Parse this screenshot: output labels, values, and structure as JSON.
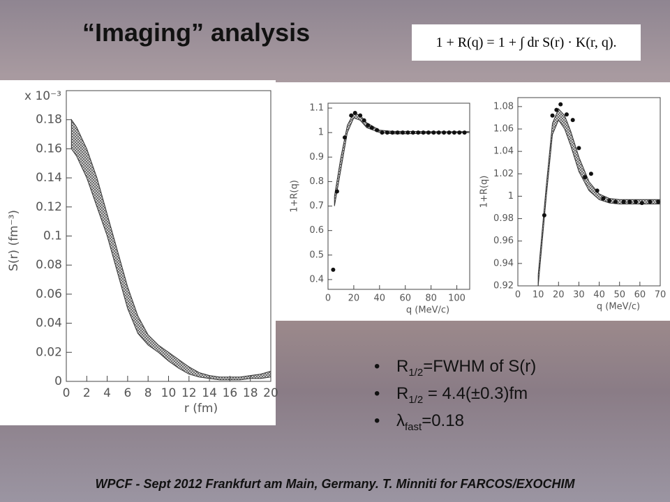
{
  "title": "“Imaging” analysis",
  "formula": "1 + R(q) = 1 + ∫ dr S(r) · K(r, q).",
  "bullets": [
    {
      "main": "R",
      "sub": "1/2",
      "rest": "=FWHM of S(r)"
    },
    {
      "main": "R",
      "sub": "1/2",
      "rest": " = 4.4(±0.3)fm"
    },
    {
      "main": "λ",
      "sub": "fast",
      "rest": "=0.18"
    }
  ],
  "footer": "WPCF - Sept 2012 Frankfurt am Main, Germany. T. Minniti for FARCOS/EXOCHIM",
  "chart_data": [
    {
      "type": "band",
      "exponent": "x 10⁻³",
      "x_label": "r (fm)",
      "y_label": "S(r) (fm⁻³)",
      "xlim": [
        0,
        20
      ],
      "xticks": [
        0,
        2,
        4,
        6,
        8,
        10,
        12,
        14,
        16,
        18,
        20
      ],
      "ylim": [
        0,
        0.2
      ],
      "yticks": [
        0,
        0.02,
        0.04,
        0.06,
        0.08,
        0.1,
        0.12,
        0.14,
        0.16,
        0.18
      ],
      "band": {
        "x": [
          0.5,
          1,
          2,
          3,
          4,
          5,
          6,
          7,
          8,
          9,
          10,
          11,
          12,
          13,
          14,
          15,
          16,
          17,
          18,
          19,
          20
        ],
        "upper": [
          0.18,
          0.175,
          0.16,
          0.14,
          0.115,
          0.09,
          0.065,
          0.045,
          0.032,
          0.025,
          0.02,
          0.015,
          0.01,
          0.006,
          0.004,
          0.003,
          0.003,
          0.003,
          0.004,
          0.005,
          0.007
        ],
        "lower": [
          0.16,
          0.155,
          0.14,
          0.12,
          0.1,
          0.075,
          0.05,
          0.033,
          0.025,
          0.02,
          0.014,
          0.009,
          0.005,
          0.003,
          0.002,
          0.001,
          0.001,
          0.001,
          0.002,
          0.002,
          0.003
        ]
      }
    },
    {
      "type": "scatter_band",
      "x_label": "q (MeV/c)",
      "y_label": "1+R(q)",
      "xlim": [
        0,
        110
      ],
      "xticks": [
        0,
        20,
        40,
        60,
        80,
        100
      ],
      "ylim": [
        0.36,
        1.12
      ],
      "yticks": [
        0.4,
        0.5,
        0.6,
        0.7,
        0.8,
        0.9,
        1,
        1.1
      ],
      "band": {
        "x": [
          5,
          10,
          15,
          20,
          25,
          30,
          40,
          50,
          60,
          80,
          110
        ],
        "upper": [
          0.74,
          0.9,
          1.03,
          1.08,
          1.07,
          1.04,
          1.01,
          1.005,
          1.005,
          1.004,
          1.004
        ],
        "lower": [
          0.7,
          0.85,
          1.0,
          1.06,
          1.05,
          1.02,
          1.0,
          0.995,
          0.995,
          0.998,
          1.0
        ]
      },
      "points": {
        "x": [
          4,
          7,
          13,
          18,
          21,
          25,
          28,
          31,
          34,
          38,
          42,
          46,
          50,
          54,
          58,
          62,
          66,
          70,
          74,
          78,
          82,
          86,
          90,
          94,
          98,
          102,
          106
        ],
        "y": [
          0.44,
          0.76,
          0.98,
          1.07,
          1.08,
          1.07,
          1.05,
          1.03,
          1.02,
          1.01,
          1.0,
          1.0,
          1.0,
          1.0,
          1.0,
          1.0,
          1.0,
          1.0,
          1.0,
          1.0,
          1.0,
          1.0,
          1.0,
          1.0,
          1.0,
          1.0,
          1.0
        ]
      }
    },
    {
      "type": "scatter_band",
      "x_label": "q (MeV/c)",
      "y_label": "1+R(q)",
      "xlim": [
        0,
        70
      ],
      "xticks": [
        0,
        10,
        20,
        30,
        40,
        50,
        60,
        70
      ],
      "ylim": [
        0.92,
        1.088
      ],
      "yticks": [
        0.92,
        0.94,
        0.96,
        0.98,
        1,
        1.02,
        1.04,
        1.06,
        1.08
      ],
      "band": {
        "x": [
          10,
          14,
          17,
          20,
          23,
          26,
          30,
          35,
          40,
          45,
          50,
          60,
          70
        ],
        "upper": [
          0.93,
          1.01,
          1.065,
          1.078,
          1.072,
          1.058,
          1.035,
          1.013,
          1.002,
          0.998,
          0.997,
          0.997,
          0.997
        ],
        "lower": [
          0.92,
          1.0,
          1.055,
          1.068,
          1.06,
          1.045,
          1.022,
          1.005,
          0.997,
          0.994,
          0.993,
          0.993,
          0.993
        ]
      },
      "points": {
        "x": [
          13,
          17,
          19,
          21,
          24,
          27,
          30,
          33,
          36,
          39,
          42,
          45,
          48,
          52,
          55,
          58,
          61,
          65,
          69
        ],
        "y": [
          0.983,
          1.072,
          1.077,
          1.082,
          1.073,
          1.068,
          1.043,
          1.017,
          1.02,
          1.005,
          0.998,
          0.996,
          0.995,
          0.995,
          0.995,
          0.995,
          0.994,
          0.995,
          0.995
        ]
      }
    }
  ]
}
